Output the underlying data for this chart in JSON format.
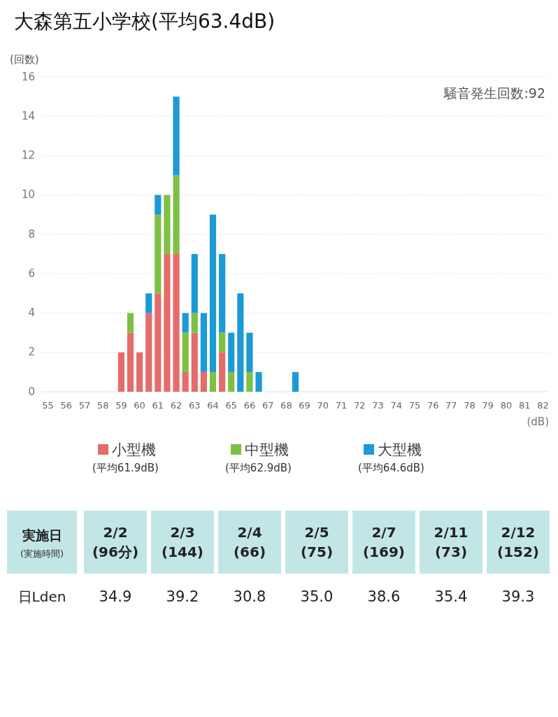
{
  "chart_data": [
    {
      "type": "bar",
      "title": "大森第五小学校(平均63.4dB)",
      "xlabel": "(dB)",
      "ylabel": "(回数)",
      "annotations": [
        "騒音発生回数:92"
      ],
      "categories": [
        "55",
        null,
        "56",
        null,
        "57",
        null,
        "58",
        null,
        "59",
        null,
        "60",
        null,
        "61",
        null,
        "62",
        null,
        "63",
        null,
        "64",
        null,
        "65",
        null,
        "66",
        null,
        "67",
        null,
        "68",
        null,
        "69",
        null,
        "70",
        null,
        "71",
        null,
        "72",
        null,
        "73",
        null,
        "74",
        null,
        "75",
        null,
        "76",
        null,
        "77",
        null,
        "78",
        null,
        "79",
        null,
        "80",
        null,
        "81",
        null,
        "82"
      ],
      "series": [
        {
          "name": "小型機\n(平均61.9dB)",
          "color": "#e46c6a",
          "values": [
            0,
            0,
            0,
            0,
            0,
            0,
            0,
            0,
            2,
            3,
            2,
            4,
            5,
            7,
            7,
            1,
            3,
            1,
            0,
            2,
            0,
            0,
            0,
            0,
            0,
            0,
            0,
            0,
            0,
            0,
            0,
            0,
            0,
            0,
            0,
            0,
            0,
            0,
            0,
            0,
            0,
            0,
            0,
            0,
            0,
            0,
            0,
            0,
            0,
            0,
            0,
            0,
            0,
            0,
            0
          ]
        },
        {
          "name": "中型機\n(平均62.9dB)",
          "color": "#7cc143",
          "values": [
            0,
            0,
            0,
            0,
            0,
            0,
            0,
            0,
            0,
            1,
            0,
            0,
            4,
            3,
            4,
            2,
            1,
            0,
            1,
            1,
            1,
            0,
            1,
            0,
            0,
            0,
            0,
            0,
            0,
            0,
            0,
            0,
            0,
            0,
            0,
            0,
            0,
            0,
            0,
            0,
            0,
            0,
            0,
            0,
            0,
            0,
            0,
            0,
            0,
            0,
            0,
            0,
            0,
            0,
            0
          ]
        },
        {
          "name": "大型機\n(平均64.6dB)",
          "color": "#1b9ad6",
          "values": [
            0,
            0,
            0,
            0,
            0,
            0,
            0,
            0,
            0,
            0,
            0,
            1,
            1,
            0,
            4,
            1,
            3,
            3,
            8,
            4,
            2,
            5,
            2,
            1,
            0,
            0,
            0,
            1,
            0,
            0,
            0,
            0,
            0,
            0,
            0,
            0,
            0,
            0,
            0,
            0,
            0,
            0,
            0,
            0,
            0,
            0,
            0,
            0,
            0,
            0,
            0,
            0,
            0,
            0,
            0
          ]
        }
      ],
      "stacked": true,
      "ylim": [
        0,
        16
      ],
      "yticks": [
        0,
        2,
        4,
        6,
        8,
        10,
        12,
        14,
        16
      ],
      "grid": "y",
      "legend": "bottom"
    },
    {
      "type": "other",
      "xlabel": "実施日\n(実施時間)",
      "ylabel": "日Lden",
      "categories": [
        "2/2\n(96分)",
        "2/3\n(144)",
        "2/4\n(66)",
        "2/5\n(75)",
        "2/7\n(169)",
        "2/11\n(73)",
        "2/12\n(152)"
      ],
      "value_labels": [
        "34.9",
        "39.2",
        "30.8",
        "35.0",
        "38.6",
        "35.4",
        "39.3"
      ]
    }
  ]
}
